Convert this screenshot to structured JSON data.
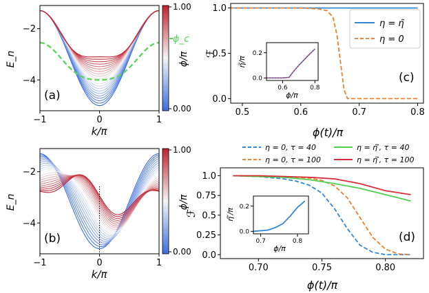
{
  "chart_data": [
    {
      "id": "a",
      "type": "line",
      "panel_label": "(a)",
      "xlabel": "k/π",
      "ylabel": "E_n",
      "xlim": [
        -1,
        1
      ],
      "ylim": [
        -5.2,
        -1.1
      ],
      "xticks": [
        -1,
        0,
        1
      ],
      "xtick_labels": [
        "−1",
        "0",
        "1"
      ],
      "yticks": [
        -4,
        -2
      ],
      "ytick_labels": [
        "−4",
        "−2"
      ],
      "colorbar": {
        "label": "ϕ/π",
        "min": "0.00",
        "max": "1.00",
        "min_color": "#3b6fe0",
        "mid_color": "#f5f5f5",
        "max_color": "#c0202e"
      },
      "series_family": {
        "description": "band energies colored by ϕ/π from 0.00 (blue) to 1.00 (red)",
        "count": 21,
        "edge_energy": -1.3,
        "center_energy_at_phi0": -5.0,
        "center_energy_at_phi1": -3.1
      },
      "highlight": {
        "label": "ϕ_c",
        "color": "#5fd35f",
        "style": "dashed",
        "center_value": -4.0,
        "edge_value": -2.55
      }
    },
    {
      "id": "b",
      "type": "line",
      "panel_label": "(b)",
      "xlabel": "k/π",
      "ylabel": "E_n",
      "xlim": [
        -1,
        1
      ],
      "ylim": [
        -5.2,
        -1.1
      ],
      "xticks": [
        -1,
        0,
        1
      ],
      "xtick_labels": [
        "−1",
        "0",
        "1"
      ],
      "yticks": [
        -4,
        -2
      ],
      "ytick_labels": [
        "−4",
        "−2"
      ],
      "colorbar": {
        "label": "ϕ/π",
        "min": "0.00",
        "max": "1.00",
        "min_color": "#3b6fe0",
        "mid_color": "#f5f5f5",
        "max_color": "#c0202e"
      },
      "series_family": {
        "description": "bands shift in k as ϕ/π increases",
        "count": 21,
        "max_shift": 0.45
      },
      "vline": {
        "x": 0,
        "style": "dotted"
      }
    },
    {
      "id": "c",
      "type": "line",
      "panel_label": "(c)",
      "xlabel": "ϕ(t)/π",
      "ylabel": "ℱ",
      "xlim": [
        0.48,
        0.81
      ],
      "ylim": [
        -0.05,
        1.05
      ],
      "xticks": [
        0.5,
        0.6,
        0.7,
        0.8
      ],
      "xtick_labels": [
        "0.5",
        "0.6",
        "0.7",
        "0.8"
      ],
      "yticks": [
        0.0,
        0.5,
        1.0
      ],
      "ytick_labels": [
        "0.0",
        "0.5",
        "1.0"
      ],
      "legend": {
        "position": "top-right"
      },
      "series": [
        {
          "name": "η = η̃",
          "color": "#2f86d6",
          "dash": "solid",
          "x": [
            0.48,
            0.55,
            0.6,
            0.65,
            0.7,
            0.75,
            0.8
          ],
          "y": [
            1.0,
            1.0,
            1.0,
            1.0,
            1.0,
            1.0,
            1.0
          ]
        },
        {
          "name": "η = 0",
          "color": "#f07f2f",
          "dash": "dashed",
          "x": [
            0.48,
            0.6,
            0.63,
            0.645,
            0.655,
            0.662,
            0.668,
            0.674,
            0.68,
            0.7,
            0.8
          ],
          "y": [
            1.0,
            1.0,
            0.99,
            0.97,
            0.9,
            0.7,
            0.4,
            0.1,
            0.0,
            0.0,
            0.0
          ]
        }
      ],
      "inset": {
        "xlabel": "ϕ/π",
        "ylabel": "η̃/π",
        "xlim": [
          0.5,
          0.82
        ],
        "ylim": [
          -0.02,
          0.28
        ],
        "xticks": [
          0.6,
          0.8
        ],
        "xtick_labels": [
          "0.6",
          "0.8"
        ],
        "yticks": [
          0.0,
          0.2
        ],
        "ytick_labels": [
          "0.0",
          "0.2"
        ],
        "series": [
          {
            "name": "inset-blue",
            "color": "#2f86d6",
            "dash": "solid",
            "x": [
              0.5,
              0.6,
              0.64,
              0.66,
              0.68,
              0.7,
              0.73,
              0.76,
              0.8
            ],
            "y": [
              0.0,
              0.0,
              0.005,
              0.04,
              0.07,
              0.1,
              0.14,
              0.18,
              0.23
            ]
          },
          {
            "name": "inset-red",
            "color": "#d62f3b",
            "dash": "dotted",
            "x": [
              0.5,
              0.6,
              0.64,
              0.66,
              0.68,
              0.7,
              0.73,
              0.76,
              0.8
            ],
            "y": [
              0.0,
              0.0,
              0.005,
              0.04,
              0.07,
              0.1,
              0.14,
              0.18,
              0.23
            ]
          }
        ]
      }
    },
    {
      "id": "d",
      "type": "line",
      "panel_label": "(d)",
      "xlabel": "ϕ(t)/π",
      "ylabel": "ℱ",
      "xlim": [
        0.67,
        0.83
      ],
      "ylim": [
        -0.05,
        1.1
      ],
      "xticks": [
        0.7,
        0.75,
        0.8
      ],
      "xtick_labels": [
        "0.70",
        "0.75",
        "0.80"
      ],
      "yticks": [
        0.0,
        0.25,
        0.5,
        0.75,
        1.0
      ],
      "ytick_labels": [
        "0.0",
        "0.25",
        "0.5",
        "0.75",
        "1.0"
      ],
      "legend": {
        "position": "top, outside"
      },
      "series": [
        {
          "name": "η = 0, τ = 40",
          "color": "#2f86d6",
          "dash": "dashed",
          "x": [
            0.68,
            0.7,
            0.72,
            0.73,
            0.74,
            0.75,
            0.76,
            0.77,
            0.78,
            0.79,
            0.8,
            0.82
          ],
          "y": [
            1.0,
            0.99,
            0.96,
            0.93,
            0.88,
            0.78,
            0.58,
            0.33,
            0.12,
            0.03,
            0.0,
            0.0
          ]
        },
        {
          "name": "η = 0, τ = 100",
          "color": "#f07f2f",
          "dash": "dashed",
          "x": [
            0.68,
            0.7,
            0.72,
            0.74,
            0.75,
            0.76,
            0.77,
            0.78,
            0.79,
            0.8,
            0.81,
            0.82
          ],
          "y": [
            1.0,
            1.0,
            0.99,
            0.97,
            0.94,
            0.87,
            0.72,
            0.47,
            0.22,
            0.07,
            0.01,
            0.0
          ]
        },
        {
          "name": "η = η̃′, τ = 40",
          "color": "#4cd14c",
          "dash": "solid",
          "x": [
            0.68,
            0.7,
            0.72,
            0.74,
            0.76,
            0.78,
            0.8,
            0.82
          ],
          "y": [
            1.0,
            0.99,
            0.98,
            0.95,
            0.9,
            0.84,
            0.76,
            0.68
          ]
        },
        {
          "name": "η = η̃′, τ = 100",
          "color": "#d62f3b",
          "dash": "solid",
          "x": [
            0.68,
            0.7,
            0.72,
            0.74,
            0.76,
            0.78,
            0.8,
            0.82
          ],
          "y": [
            1.0,
            1.0,
            0.99,
            0.98,
            0.96,
            0.9,
            0.81,
            0.76
          ]
        }
      ],
      "inset": {
        "xlabel": "ϕ/π",
        "ylabel": "η̃′/π",
        "xlim": [
          0.68,
          0.83
        ],
        "ylim": [
          -0.02,
          0.28
        ],
        "xticks": [
          0.7,
          0.8
        ],
        "xtick_labels": [
          "0.7",
          "0.8"
        ],
        "yticks": [
          0.0,
          0.2
        ],
        "ytick_labels": [
          "0.0",
          "0.2"
        ],
        "series": [
          {
            "name": "inset-blue",
            "color": "#2f86d6",
            "dash": "solid",
            "x": [
              0.68,
              0.7,
              0.72,
              0.74,
              0.76,
              0.78,
              0.8,
              0.82
            ],
            "y": [
              0.0,
              0.005,
              0.01,
              0.03,
              0.06,
              0.12,
              0.19,
              0.24
            ]
          }
        ]
      }
    }
  ]
}
